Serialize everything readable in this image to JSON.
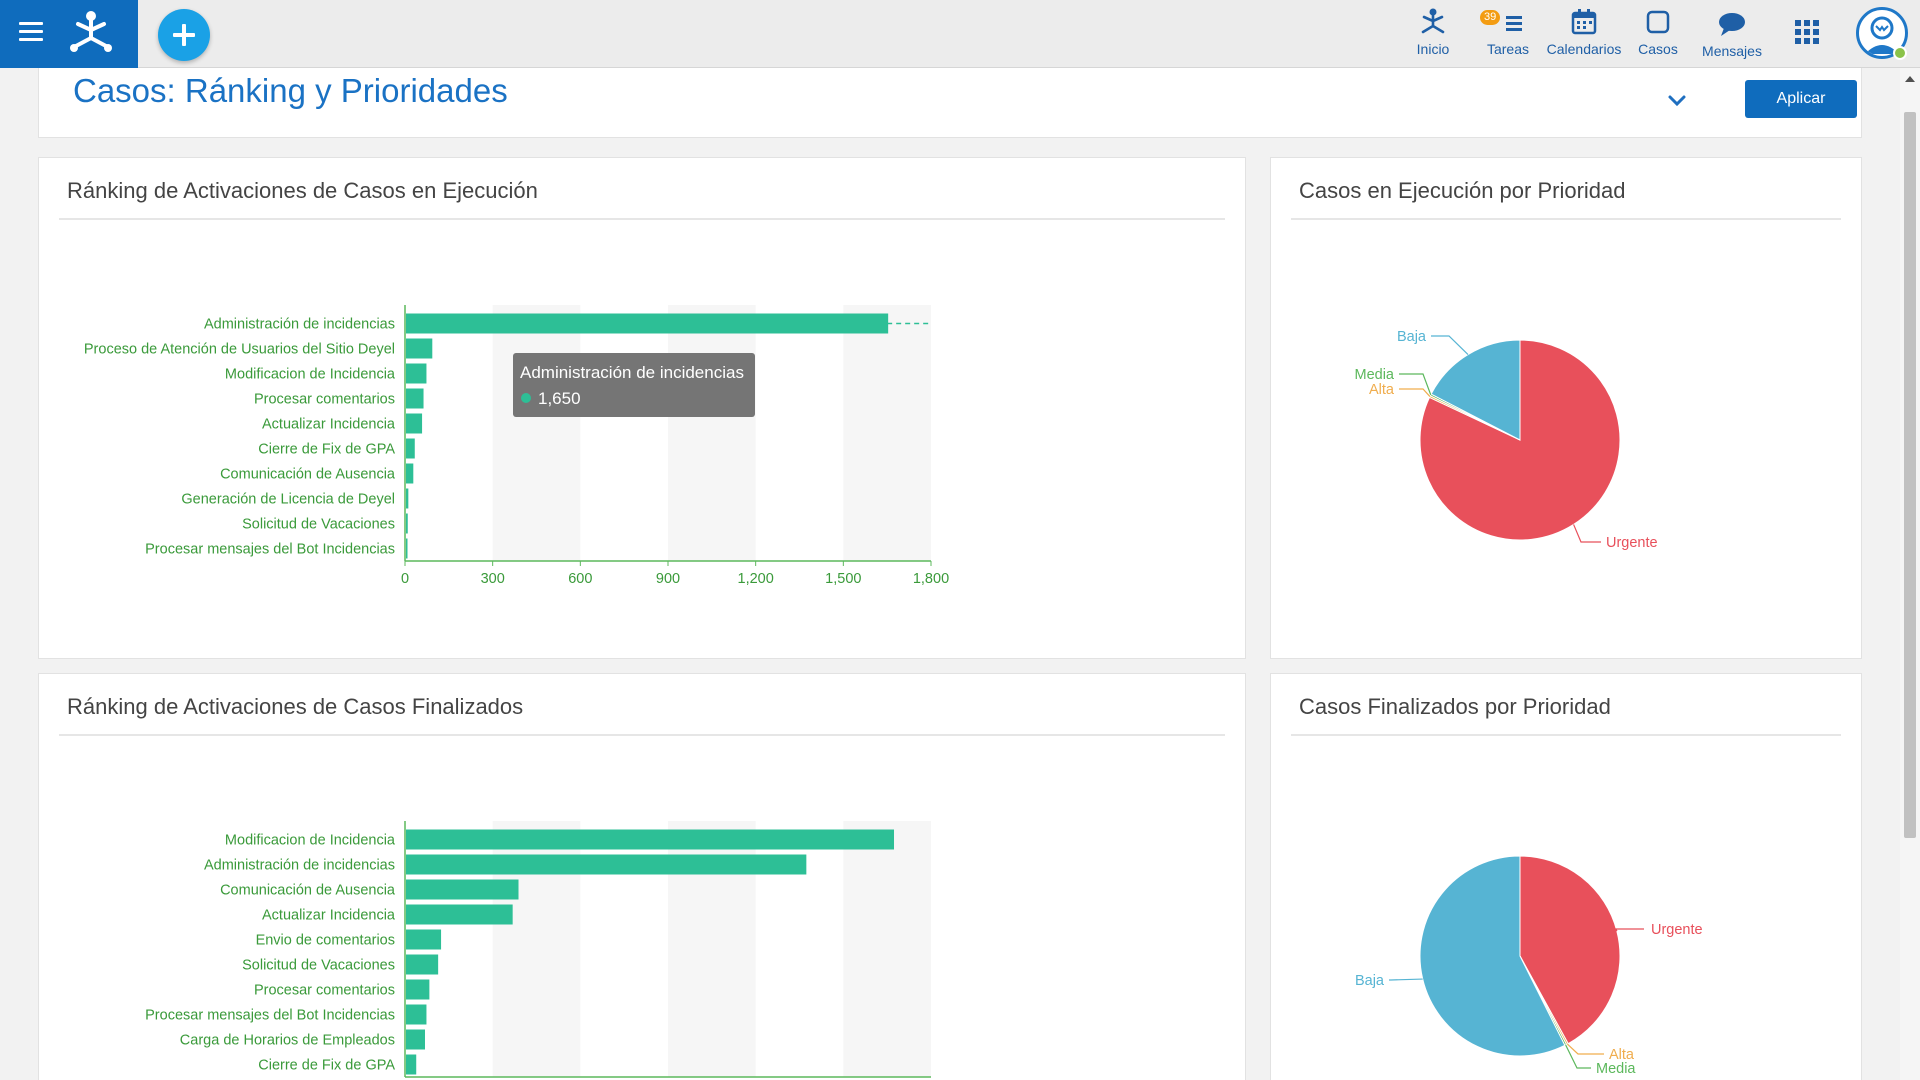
{
  "nav": {
    "items": [
      {
        "label": "Inicio"
      },
      {
        "label": "Tareas",
        "badge": "39"
      },
      {
        "label": "Calendarios"
      },
      {
        "label": "Casos"
      },
      {
        "label": "Mensajes"
      }
    ]
  },
  "page": {
    "title": "Casos: Ránking y Prioridades",
    "apply_label": "Aplicar"
  },
  "panels": {
    "ranking_running": {
      "title": "Ránking de Activaciones de Casos en Ejecución",
      "tooltip": {
        "label": "Administración de incidencias",
        "value": "1,650"
      }
    },
    "priority_running": {
      "title": "Casos en Ejecución por Prioridad"
    },
    "ranking_finished": {
      "title": "Ránking de Activaciones de Casos Finalizados"
    },
    "priority_finished": {
      "title": "Casos Finalizados por Prioridad"
    }
  },
  "colors": {
    "bar": "#2dbf96",
    "urgente": "#e8505b",
    "baja": "#56b4d3",
    "media": "#5cb85c",
    "alta": "#f0ad4e",
    "brand": "#0f6cbd"
  },
  "chart_data": [
    {
      "id": "ranking_running",
      "type": "bar",
      "orientation": "horizontal",
      "categories": [
        "Administración de incidencias",
        "Proceso de Atención de Usuarios del Sitio Deyel",
        "Modificacion de Incidencia",
        "Procesar comentarios",
        "Actualizar Incidencia",
        "Cierre de Fix de GPA",
        "Comunicación de Ausencia",
        "Generación de Licencia de Deyel",
        "Solicitud de Vacaciones",
        "Procesar mensajes del Bot Incidencias"
      ],
      "values": [
        1650,
        90,
        70,
        60,
        55,
        30,
        25,
        8,
        6,
        5
      ],
      "xlim": [
        0,
        1800
      ],
      "xticks": [
        "0",
        "300",
        "600",
        "900",
        "1,200",
        "1,500",
        "1,800"
      ],
      "xtick_values": [
        0,
        300,
        600,
        900,
        1200,
        1500,
        1800
      ],
      "grid": "alternating vertical bands"
    },
    {
      "id": "priority_running",
      "type": "pie",
      "slices": [
        {
          "label": "Urgente",
          "value": 82,
          "color": "#e8505b"
        },
        {
          "label": "Alta",
          "value": 0.3,
          "color": "#f0ad4e"
        },
        {
          "label": "Media",
          "value": 0.3,
          "color": "#5cb85c"
        },
        {
          "label": "Baja",
          "value": 17.4,
          "color": "#56b4d3"
        }
      ]
    },
    {
      "id": "ranking_finished",
      "type": "bar",
      "orientation": "horizontal",
      "categories": [
        "Modificacion de Incidencia",
        "Administración de incidencias",
        "Comunicación de Ausencia",
        "Actualizar Incidencia",
        "Envio de comentarios",
        "Solicitud de Vacaciones",
        "Procesar comentarios",
        "Procesar mensajes del Bot Incidencias",
        "Carga de Horarios de Empleados",
        "Cierre de Fix de GPA"
      ],
      "values": [
        1670,
        1370,
        385,
        365,
        120,
        110,
        80,
        70,
        65,
        35
      ],
      "xlim": [
        0,
        1800
      ],
      "grid": "alternating vertical bands"
    },
    {
      "id": "priority_finished",
      "type": "pie",
      "slices": [
        {
          "label": "Urgente",
          "value": 42,
          "color": "#e8505b"
        },
        {
          "label": "Alta",
          "value": 0.3,
          "color": "#f0ad4e"
        },
        {
          "label": "Media",
          "value": 0.3,
          "color": "#5cb85c"
        },
        {
          "label": "Baja",
          "value": 57.4,
          "color": "#56b4d3"
        }
      ]
    }
  ]
}
